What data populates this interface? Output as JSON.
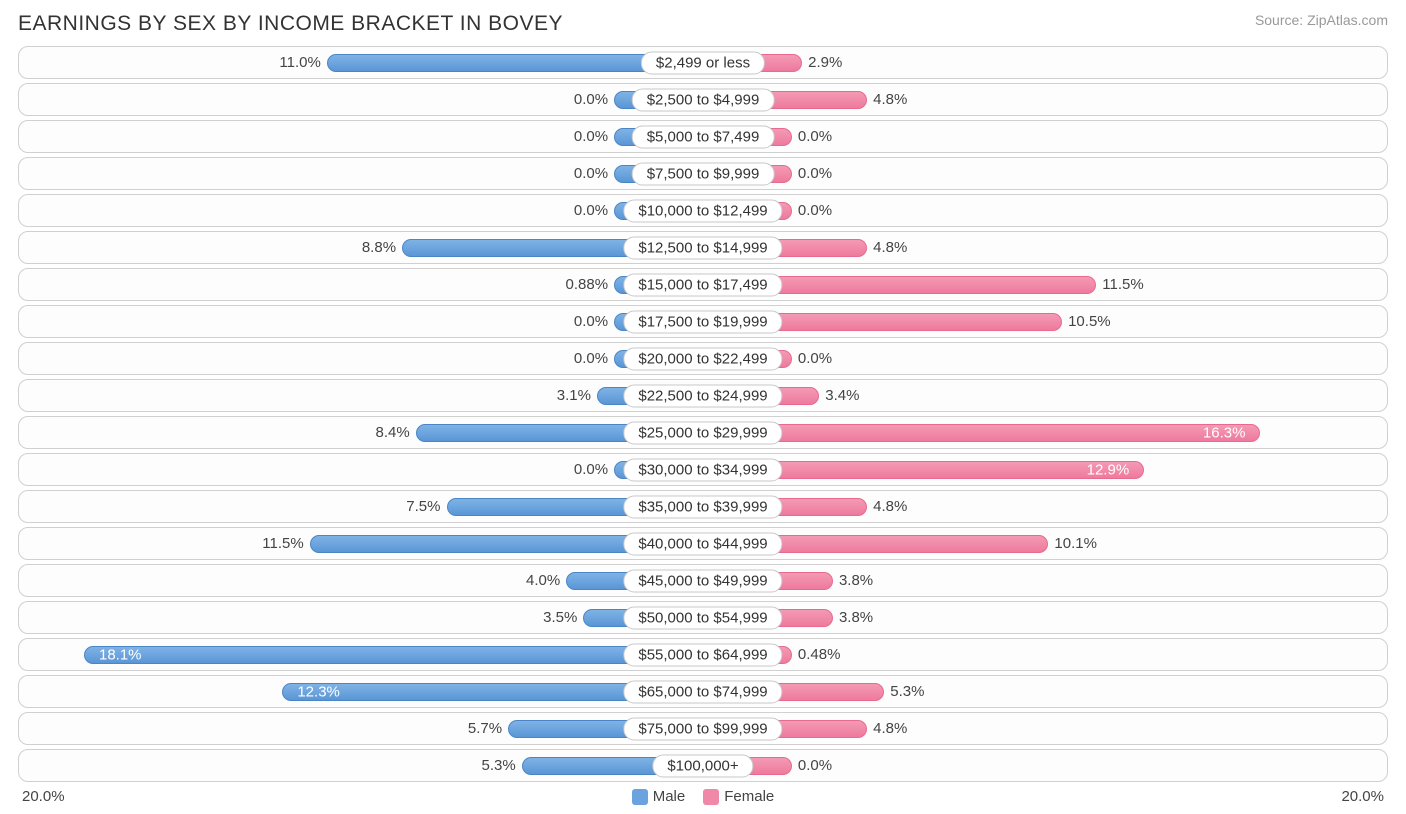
{
  "title": "EARNINGS BY SEX BY INCOME BRACKET IN BOVEY",
  "source": "Source: ZipAtlas.com",
  "axis_max": 20.0,
  "axis_label_left": "20.0%",
  "axis_label_right": "20.0%",
  "min_bar_pct": 2.6,
  "colors": {
    "male_top": "#7fb3e6",
    "male_bottom": "#5a96d6",
    "male_border": "#4a86c6",
    "female_top": "#f49ab5",
    "female_bottom": "#ee7a9e",
    "female_border": "#e86a8e",
    "row_border": "#d0d0d0",
    "text": "#444444",
    "title_text": "#333333",
    "source_text": "#999999",
    "background": "#ffffff"
  },
  "legend": [
    {
      "label": "Male",
      "color": "#6aa3dd"
    },
    {
      "label": "Female",
      "color": "#f088a8"
    }
  ],
  "rows": [
    {
      "bracket": "$2,499 or less",
      "male": 11.0,
      "male_label": "11.0%",
      "female": 2.9,
      "female_label": "2.9%"
    },
    {
      "bracket": "$2,500 to $4,999",
      "male": 0.0,
      "male_label": "0.0%",
      "female": 4.8,
      "female_label": "4.8%"
    },
    {
      "bracket": "$5,000 to $7,499",
      "male": 0.0,
      "male_label": "0.0%",
      "female": 0.0,
      "female_label": "0.0%"
    },
    {
      "bracket": "$7,500 to $9,999",
      "male": 0.0,
      "male_label": "0.0%",
      "female": 0.0,
      "female_label": "0.0%"
    },
    {
      "bracket": "$10,000 to $12,499",
      "male": 0.0,
      "male_label": "0.0%",
      "female": 0.0,
      "female_label": "0.0%"
    },
    {
      "bracket": "$12,500 to $14,999",
      "male": 8.8,
      "male_label": "8.8%",
      "female": 4.8,
      "female_label": "4.8%"
    },
    {
      "bracket": "$15,000 to $17,499",
      "male": 0.88,
      "male_label": "0.88%",
      "female": 11.5,
      "female_label": "11.5%"
    },
    {
      "bracket": "$17,500 to $19,999",
      "male": 0.0,
      "male_label": "0.0%",
      "female": 10.5,
      "female_label": "10.5%"
    },
    {
      "bracket": "$20,000 to $22,499",
      "male": 0.0,
      "male_label": "0.0%",
      "female": 0.0,
      "female_label": "0.0%"
    },
    {
      "bracket": "$22,500 to $24,999",
      "male": 3.1,
      "male_label": "3.1%",
      "female": 3.4,
      "female_label": "3.4%"
    },
    {
      "bracket": "$25,000 to $29,999",
      "male": 8.4,
      "male_label": "8.4%",
      "female": 16.3,
      "female_label": "16.3%",
      "female_inside": true
    },
    {
      "bracket": "$30,000 to $34,999",
      "male": 0.0,
      "male_label": "0.0%",
      "female": 12.9,
      "female_label": "12.9%",
      "female_inside": true
    },
    {
      "bracket": "$35,000 to $39,999",
      "male": 7.5,
      "male_label": "7.5%",
      "female": 4.8,
      "female_label": "4.8%"
    },
    {
      "bracket": "$40,000 to $44,999",
      "male": 11.5,
      "male_label": "11.5%",
      "female": 10.1,
      "female_label": "10.1%"
    },
    {
      "bracket": "$45,000 to $49,999",
      "male": 4.0,
      "male_label": "4.0%",
      "female": 3.8,
      "female_label": "3.8%"
    },
    {
      "bracket": "$50,000 to $54,999",
      "male": 3.5,
      "male_label": "3.5%",
      "female": 3.8,
      "female_label": "3.8%"
    },
    {
      "bracket": "$55,000 to $64,999",
      "male": 18.1,
      "male_label": "18.1%",
      "male_inside": true,
      "female": 0.48,
      "female_label": "0.48%"
    },
    {
      "bracket": "$65,000 to $74,999",
      "male": 12.3,
      "male_label": "12.3%",
      "male_inside": true,
      "female": 5.3,
      "female_label": "5.3%"
    },
    {
      "bracket": "$75,000 to $99,999",
      "male": 5.7,
      "male_label": "5.7%",
      "female": 4.8,
      "female_label": "4.8%"
    },
    {
      "bracket": "$100,000+",
      "male": 5.3,
      "male_label": "5.3%",
      "female": 0.0,
      "female_label": "0.0%"
    }
  ]
}
